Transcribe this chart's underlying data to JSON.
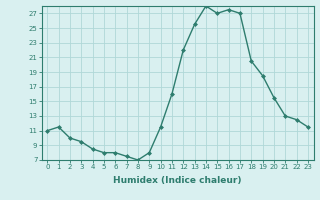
{
  "x": [
    0,
    1,
    2,
    3,
    4,
    5,
    6,
    7,
    8,
    9,
    10,
    11,
    12,
    13,
    14,
    15,
    16,
    17,
    18,
    19,
    20,
    21,
    22,
    23
  ],
  "y": [
    11,
    11.5,
    10,
    9.5,
    8.5,
    8,
    8,
    7.5,
    7,
    8,
    11.5,
    16,
    22,
    25.5,
    28,
    27,
    27.5,
    27,
    20.5,
    18.5,
    15.5,
    13,
    12.5,
    11.5
  ],
  "line_color": "#2e7d6e",
  "marker": "D",
  "markersize": 2.0,
  "linewidth": 1.0,
  "bg_color": "#d9f0f0",
  "grid_color": "#b0d8d8",
  "xlabel": "Humidex (Indice chaleur)",
  "xlabel_fontsize": 6.5,
  "xlabel_fontweight": "bold",
  "xlim": [
    -0.5,
    23.5
  ],
  "ylim": [
    7,
    28
  ],
  "yticks": [
    7,
    9,
    11,
    13,
    15,
    17,
    19,
    21,
    23,
    25,
    27
  ],
  "xticks": [
    0,
    1,
    2,
    3,
    4,
    5,
    6,
    7,
    8,
    9,
    10,
    11,
    12,
    13,
    14,
    15,
    16,
    17,
    18,
    19,
    20,
    21,
    22,
    23
  ],
  "tick_fontsize": 5.0,
  "axis_color": "#2e7d6e",
  "spine_color": "#2e7d6e"
}
